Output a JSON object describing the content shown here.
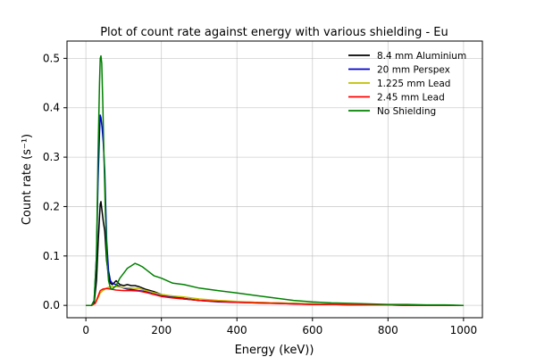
{
  "chart_data": {
    "type": "line",
    "title": "Plot of count rate against energy with various shielding - Eu",
    "xlabel": "Energy (keV))",
    "ylabel": "Count rate (s⁻¹)",
    "xlim": [
      -50,
      1050
    ],
    "ylim": [
      -0.025,
      0.535
    ],
    "x_ticks": [
      0,
      200,
      400,
      600,
      800,
      1000
    ],
    "x_tick_labels": [
      "0",
      "200",
      "400",
      "600",
      "800",
      "1000"
    ],
    "y_ticks": [
      0.0,
      0.1,
      0.2,
      0.3,
      0.4,
      0.5
    ],
    "y_tick_labels": [
      "0.0",
      "0.1",
      "0.2",
      "0.3",
      "0.4",
      "0.5"
    ],
    "grid": true,
    "legend_position": "top-right",
    "series": [
      {
        "name": "8.4 mm Aluminium",
        "color": "#000000",
        "x": [
          0,
          15,
          22,
          28,
          32,
          36,
          38,
          40,
          43,
          46,
          50,
          55,
          60,
          65,
          70,
          80,
          90,
          100,
          110,
          120,
          130,
          140,
          160,
          180,
          200,
          230,
          260,
          300,
          350,
          400,
          450,
          500,
          550,
          600,
          650,
          700,
          750,
          800,
          850,
          900,
          950,
          1000
        ],
        "y": [
          0.0,
          0.0,
          0.005,
          0.05,
          0.12,
          0.18,
          0.205,
          0.21,
          0.19,
          0.17,
          0.15,
          0.09,
          0.06,
          0.045,
          0.042,
          0.05,
          0.042,
          0.04,
          0.042,
          0.04,
          0.04,
          0.038,
          0.032,
          0.028,
          0.022,
          0.018,
          0.014,
          0.01,
          0.008,
          0.007,
          0.006,
          0.005,
          0.004,
          0.003,
          0.002,
          0.002,
          0.001,
          0.001,
          0.001,
          0.0,
          0.0,
          0.0
        ]
      },
      {
        "name": "20 mm Perspex",
        "color": "#0000cc",
        "x": [
          0,
          15,
          22,
          28,
          32,
          36,
          38,
          40,
          43,
          46,
          50,
          55,
          60,
          65,
          70,
          80,
          90,
          100,
          110,
          120,
          130,
          140,
          160,
          180,
          200,
          230,
          260,
          300,
          350,
          400,
          450,
          500,
          550,
          600,
          650,
          700,
          750,
          800,
          850,
          900,
          950,
          1000
        ],
        "y": [
          0.0,
          0.0,
          0.01,
          0.1,
          0.25,
          0.35,
          0.385,
          0.38,
          0.36,
          0.33,
          0.27,
          0.13,
          0.07,
          0.05,
          0.045,
          0.042,
          0.038,
          0.035,
          0.033,
          0.032,
          0.031,
          0.03,
          0.028,
          0.025,
          0.02,
          0.016,
          0.013,
          0.01,
          0.007,
          0.006,
          0.005,
          0.004,
          0.003,
          0.002,
          0.002,
          0.001,
          0.001,
          0.001,
          0.0,
          0.0,
          0.0,
          0.0
        ]
      },
      {
        "name": "1.225 mm Lead",
        "color": "#bfbf00",
        "x": [
          0,
          15,
          25,
          32,
          38,
          45,
          55,
          65,
          80,
          100,
          120,
          140,
          160,
          180,
          200,
          230,
          260,
          300,
          350,
          400,
          450,
          500,
          550,
          600,
          650,
          700,
          750,
          800,
          850,
          900,
          950,
          1000
        ],
        "y": [
          0.0,
          0.0,
          0.004,
          0.015,
          0.025,
          0.03,
          0.035,
          0.038,
          0.038,
          0.036,
          0.035,
          0.034,
          0.03,
          0.026,
          0.022,
          0.019,
          0.017,
          0.013,
          0.01,
          0.008,
          0.006,
          0.005,
          0.004,
          0.003,
          0.002,
          0.002,
          0.001,
          0.001,
          0.001,
          0.0,
          0.0,
          0.0
        ]
      },
      {
        "name": "2.45 mm Lead",
        "color": "#ff0000",
        "x": [
          0,
          15,
          25,
          32,
          38,
          45,
          55,
          65,
          80,
          100,
          120,
          140,
          160,
          180,
          200,
          230,
          260,
          300,
          350,
          400,
          450,
          500,
          550,
          600,
          650,
          700,
          750,
          800,
          850,
          900,
          950,
          1000
        ],
        "y": [
          0.0,
          0.0,
          0.004,
          0.018,
          0.03,
          0.033,
          0.034,
          0.033,
          0.031,
          0.03,
          0.03,
          0.029,
          0.026,
          0.022,
          0.018,
          0.015,
          0.013,
          0.01,
          0.008,
          0.006,
          0.005,
          0.004,
          0.003,
          0.002,
          0.002,
          0.001,
          0.001,
          0.001,
          0.0,
          0.0,
          0.0,
          0.0
        ]
      },
      {
        "name": "No Shielding",
        "color": "#008000",
        "x": [
          0,
          15,
          22,
          28,
          32,
          36,
          38,
          40,
          42,
          45,
          48,
          52,
          56,
          60,
          65,
          70,
          80,
          90,
          100,
          110,
          120,
          130,
          140,
          150,
          160,
          180,
          200,
          230,
          260,
          300,
          350,
          400,
          450,
          500,
          550,
          600,
          650,
          700,
          750,
          800,
          850,
          900,
          950,
          1000
        ],
        "y": [
          0.0,
          0.0,
          0.01,
          0.1,
          0.3,
          0.45,
          0.5,
          0.505,
          0.49,
          0.4,
          0.3,
          0.18,
          0.09,
          0.05,
          0.035,
          0.033,
          0.04,
          0.055,
          0.065,
          0.075,
          0.08,
          0.085,
          0.082,
          0.078,
          0.072,
          0.06,
          0.055,
          0.045,
          0.042,
          0.035,
          0.03,
          0.025,
          0.02,
          0.015,
          0.01,
          0.007,
          0.005,
          0.004,
          0.003,
          0.002,
          0.002,
          0.001,
          0.001,
          0.0
        ]
      }
    ]
  }
}
